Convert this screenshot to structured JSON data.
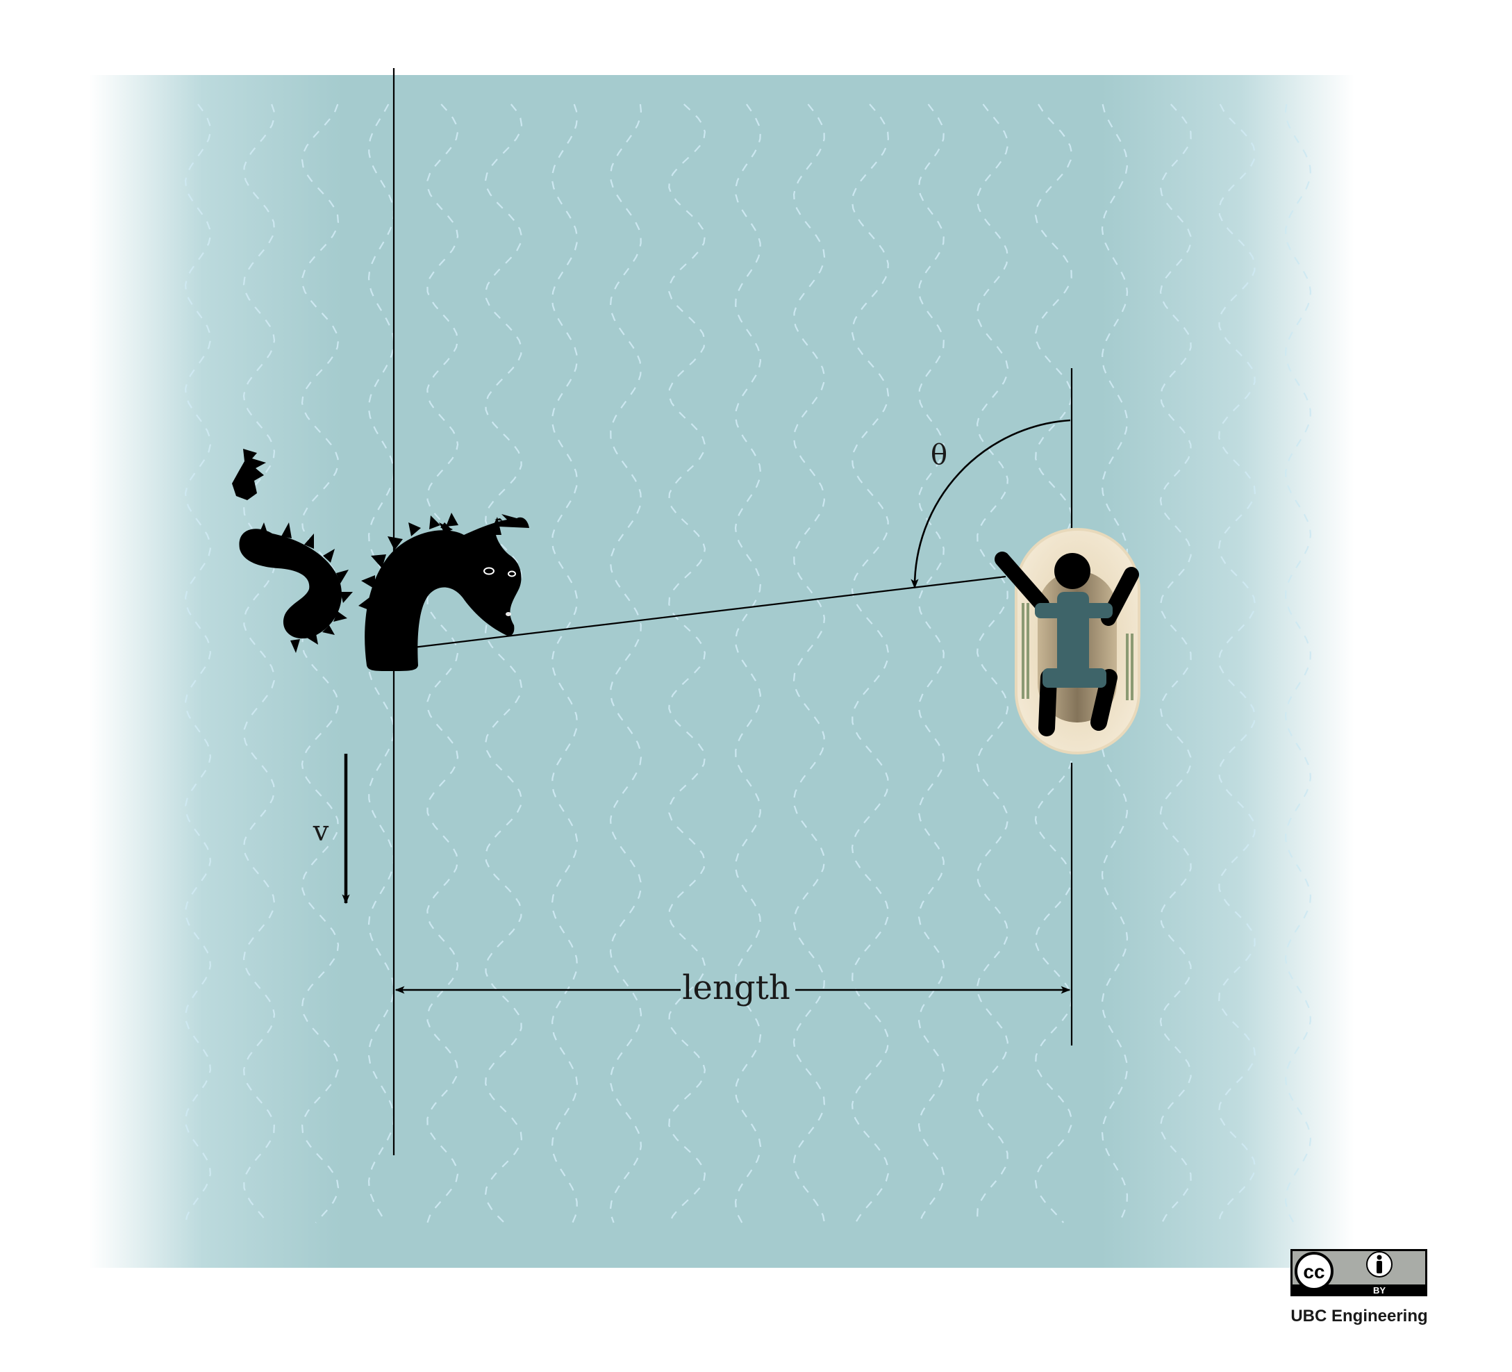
{
  "labels": {
    "theta": "θ",
    "velocity": "v",
    "length": "length"
  },
  "license": {
    "cc_mark": "cc",
    "by_mark": "BY",
    "credit": "UBC Engineering"
  },
  "icons": [
    "sea-serpent-icon",
    "boat-icon",
    "person-icon",
    "cc-by-badge-icon"
  ],
  "colors": {
    "water": "#a5cbce",
    "wave_dash": "#cfe9f2",
    "ink": "#000000",
    "boat_hull": "#efe2c8",
    "boat_inner": "#8f7f62",
    "person_shirt": "#3e6469"
  }
}
